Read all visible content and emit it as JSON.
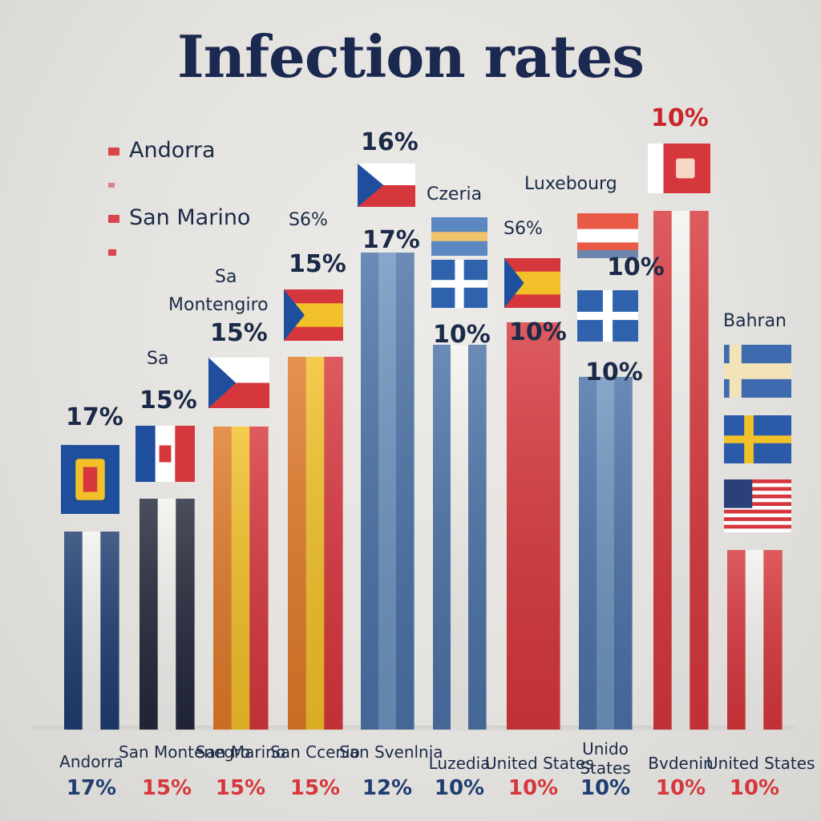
{
  "chart_data": {
    "type": "bar",
    "title": "Infection rates",
    "categories": [
      "Andorra",
      "San Montenegro",
      "San Marino",
      "San Ccenio",
      "San Svenlnia",
      "Luzedia",
      "United States",
      "Unido States",
      "Bvdenin",
      "United States"
    ],
    "values": [
      17,
      15,
      15,
      15,
      12,
      10,
      10,
      10,
      10,
      10
    ],
    "value_labels": [
      "17%",
      "15%",
      "15%",
      "15%",
      "12%",
      "10%",
      "10%",
      "10%",
      "10%",
      "10%"
    ],
    "legend": {
      "placement": "top-left",
      "entries": [
        "Andorra",
        "",
        "San Marino",
        ""
      ]
    },
    "annotations": [
      "17%",
      "Sa",
      "Montengiro",
      "15%",
      "Sa",
      "15%",
      "S6%",
      "15%",
      "16%",
      "17%",
      "Czeria",
      "Luxebourg",
      "10%",
      "S6%",
      "10%",
      "10%",
      "10%",
      "10%",
      "Bahran"
    ],
    "grid": false
  },
  "colors": {
    "navy": "#1f3d70",
    "blue": "#4b72a7",
    "steel": "#6e93bf",
    "red": "#d6373c",
    "orange": "#e07a2a",
    "yellow": "#f2c029",
    "white": "#f3f2ef",
    "black": "#23283a",
    "legend_swatch": "#d9434b"
  }
}
